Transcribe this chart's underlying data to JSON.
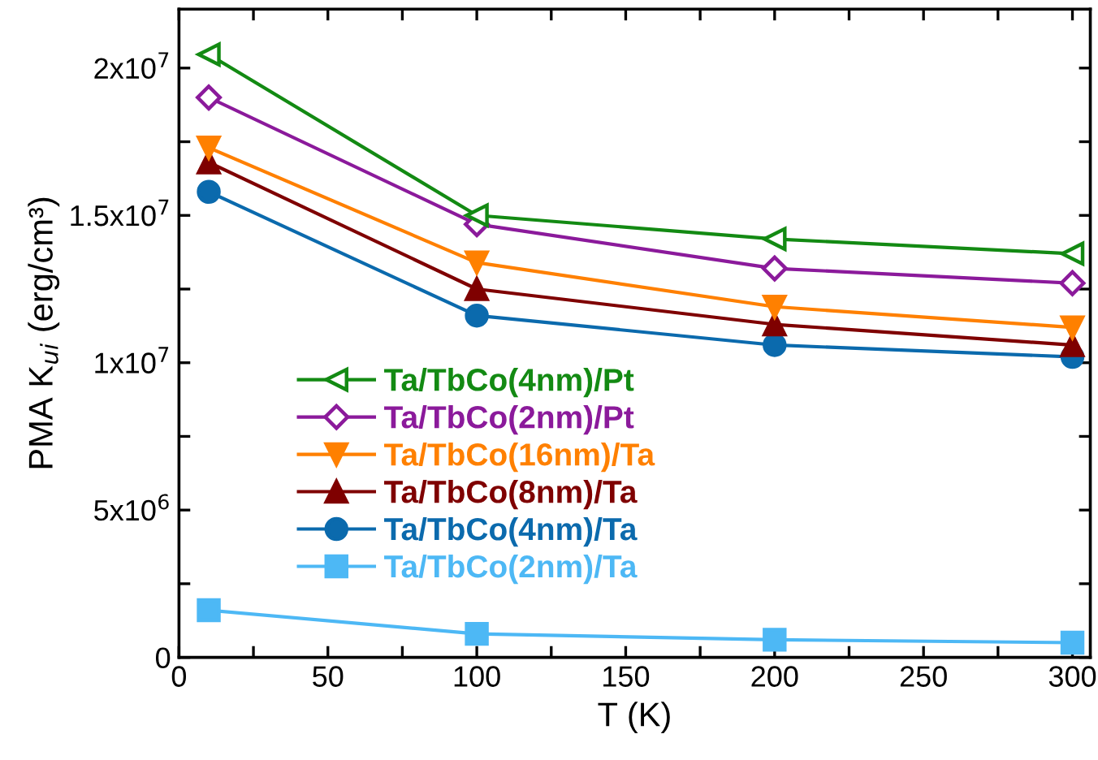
{
  "chart_data": {
    "type": "line",
    "xlabel": "T (K)",
    "ylabel": "PMA K$_{ui}$ (erg/cm³)",
    "x": [
      10,
      100,
      200,
      300
    ],
    "xlim": [
      0,
      306
    ],
    "ylim": [
      0,
      22000000
    ],
    "xticks": [
      0,
      {
        "value": 25,
        "label": null
      },
      50,
      {
        "value": 75,
        "label": null
      },
      100,
      {
        "value": 125,
        "label": null
      },
      150,
      {
        "value": 175,
        "label": null
      },
      200,
      {
        "value": 225,
        "label": null
      },
      250,
      {
        "value": 275,
        "label": null
      },
      300
    ],
    "yticks": [
      0,
      {
        "value": 2500000,
        "label": null
      },
      {
        "value": 5000000,
        "label": "5x10$^{6}$"
      },
      {
        "value": 7500000,
        "label": null
      },
      {
        "value": 10000000,
        "label": "1x10$^{7}$"
      },
      {
        "value": 12500000,
        "label": null
      },
      {
        "value": 15000000,
        "label": "1.5x10$^{7}$"
      },
      {
        "value": 17500000,
        "label": null
      },
      {
        "value": 20000000,
        "label": "2x10$^{7}$"
      }
    ],
    "grid": false,
    "legend": "left",
    "line_style": "solid",
    "series": [
      {
        "name": "Ta/TbCo(4nm)/Pt",
        "color": "#138a13",
        "marker": "triangle_left_open",
        "values": [
          20460000,
          15000000,
          14200000,
          13700000
        ]
      },
      {
        "name": "Ta/TbCo(2nm)/Pt",
        "color": "#8b1a9b",
        "marker": "diamond_open",
        "values": [
          19000000,
          14700000,
          13200000,
          12700000
        ]
      },
      {
        "name": "Ta/TbCo(16nm)/Ta",
        "color": "#ff8000",
        "marker": "triangle_down",
        "values": [
          17300000,
          13400000,
          11900000,
          11200000
        ]
      },
      {
        "name": "Ta/TbCo(8nm)/Ta",
        "color": "#7f0000",
        "marker": "triangle",
        "values": [
          16800000,
          12500000,
          11300000,
          10600000
        ]
      },
      {
        "name": "Ta/TbCo(4nm)/Ta",
        "color": "#0b6aad",
        "marker": "circle",
        "values": [
          15800000,
          11600000,
          10600000,
          10200000
        ]
      },
      {
        "name": "Ta/TbCo(2nm)/Ta",
        "color": "#4db8f5",
        "marker": "square",
        "values": [
          1600000,
          800000,
          600000,
          500000
        ]
      }
    ]
  }
}
